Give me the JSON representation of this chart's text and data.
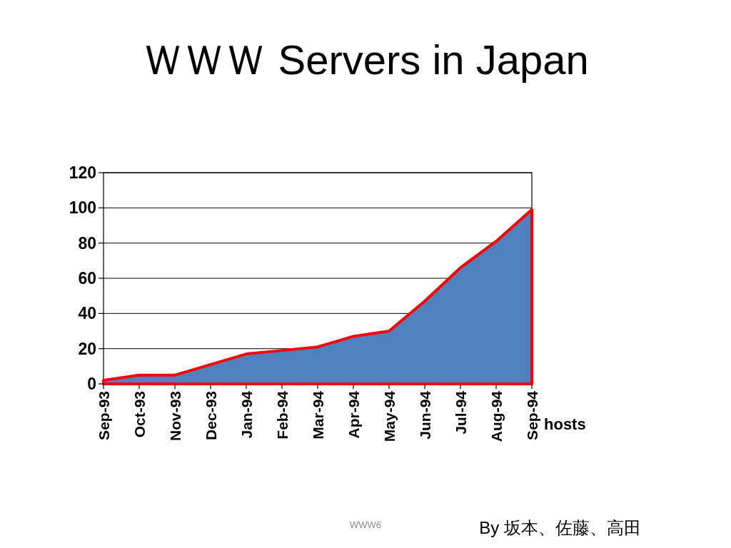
{
  "chart_data": {
    "type": "area",
    "title": "ＷＷＷ Servers in Japan",
    "categories": [
      "Sep-93",
      "Oct-93",
      "Nov-93",
      "Dec-93",
      "Jan-94",
      "Feb-94",
      "Mar-94",
      "Apr-94",
      "May-94",
      "Jun-94",
      "Jul-94",
      "Aug-94",
      "Sep-94"
    ],
    "series": [
      {
        "name": "hosts",
        "color": "#4f81bd",
        "values": [
          2,
          5,
          5,
          11,
          17,
          19,
          21,
          27,
          30,
          47,
          66,
          81,
          99
        ]
      }
    ],
    "ylim": [
      0,
      120
    ],
    "yticks": [
      0,
      20,
      40,
      60,
      80,
      100,
      120
    ],
    "grid": "y",
    "annotations": [
      "WWW6",
      "By 坂本、佐藤、高田"
    ]
  }
}
